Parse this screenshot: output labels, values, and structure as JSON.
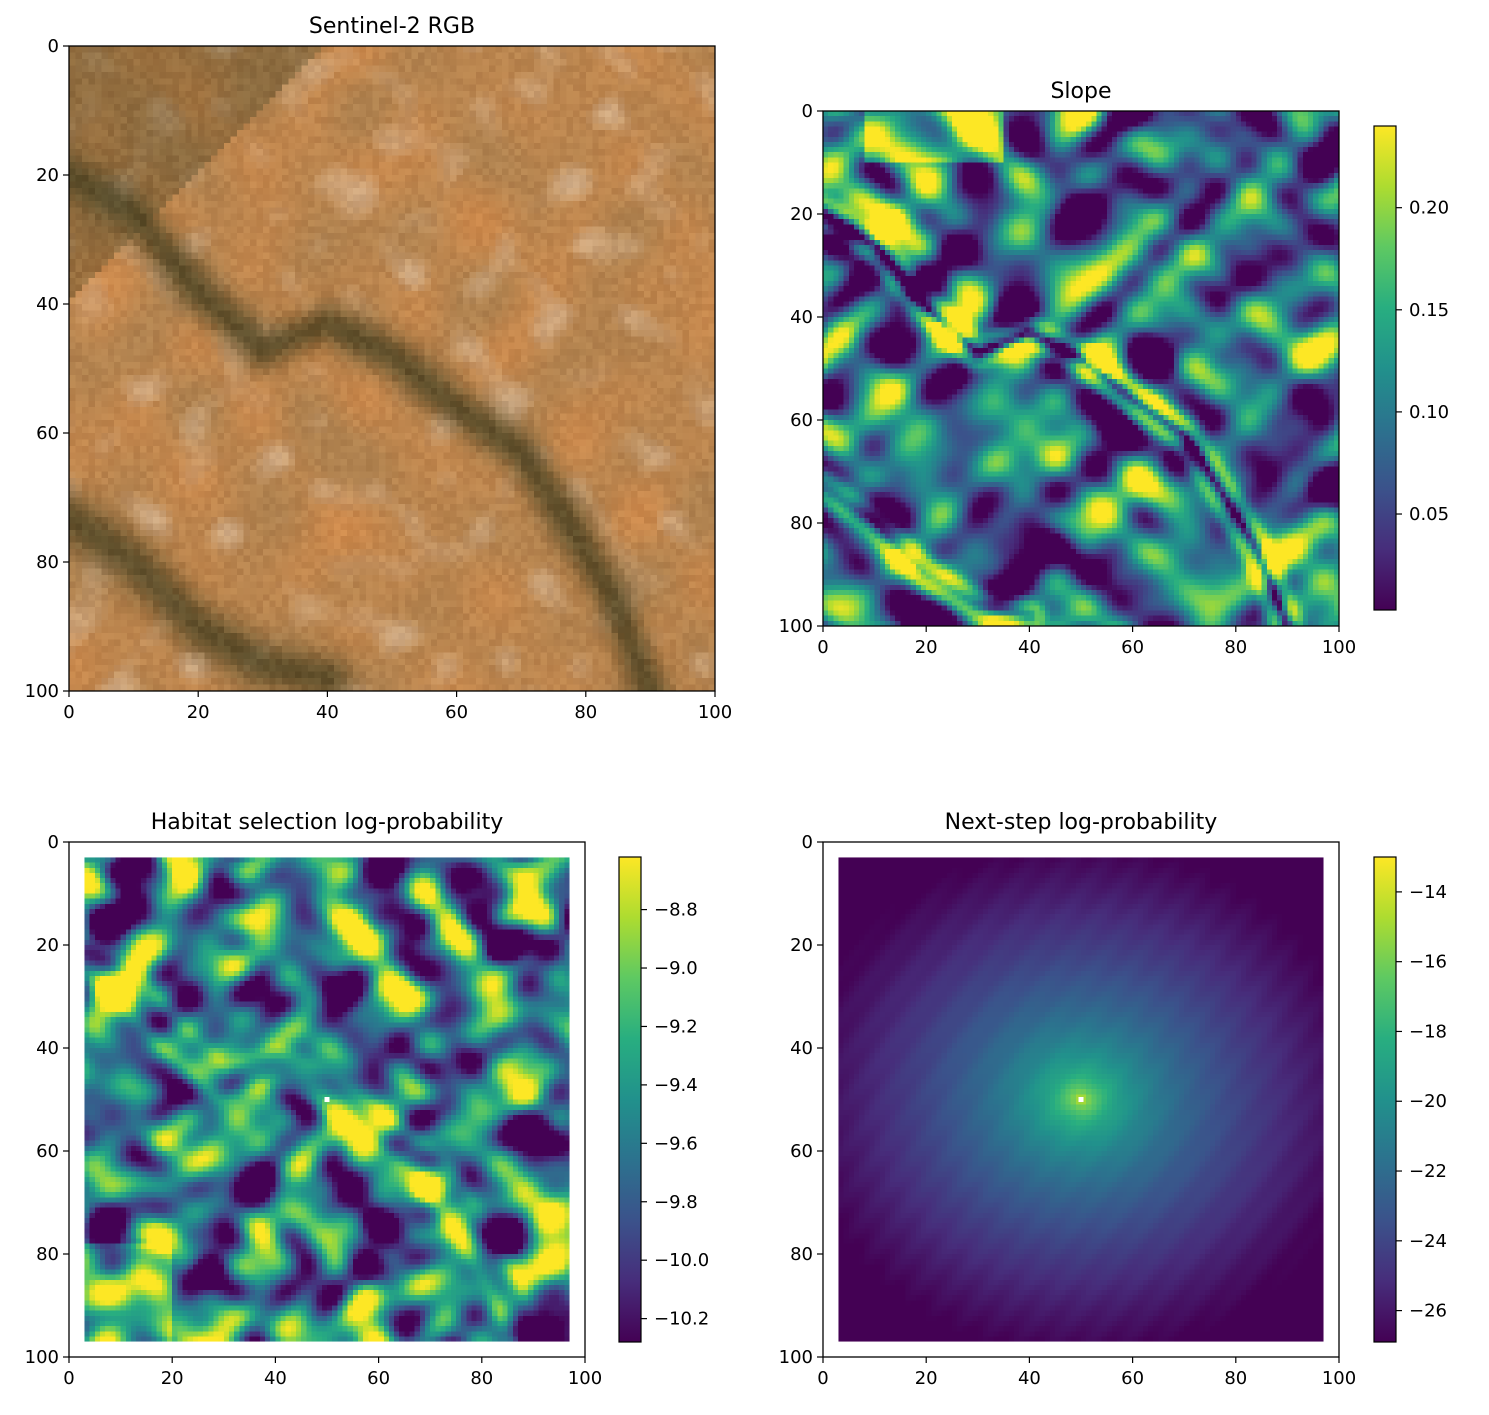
{
  "figure": {
    "panels": [
      {
        "id": "rgb",
        "title": "Sentinel-2 RGB"
      },
      {
        "id": "slope",
        "title": "Slope"
      },
      {
        "id": "habitat",
        "title": "Habitat selection log-probability"
      },
      {
        "id": "nextstep",
        "title": "Next-step log-probability"
      }
    ]
  },
  "chart_data": [
    {
      "type": "heatmap",
      "title": "Sentinel-2 RGB",
      "xlabel": "",
      "ylabel": "",
      "xlim": [
        0,
        100
      ],
      "ylim": [
        100,
        0
      ],
      "x_ticks": [
        0,
        20,
        40,
        60,
        80,
        100
      ],
      "y_ticks": [
        0,
        20,
        40,
        60,
        80,
        100
      ],
      "colormap": "rgb",
      "colors": {
        "base": "#b0824f",
        "dark": "#4a4222",
        "light": "#d8b896",
        "orange": "#cf8a4c"
      },
      "colorbar": null
    },
    {
      "type": "heatmap",
      "title": "Slope",
      "xlabel": "",
      "ylabel": "",
      "xlim": [
        0,
        100
      ],
      "ylim": [
        100,
        0
      ],
      "x_ticks": [
        0,
        20,
        40,
        60,
        80,
        100
      ],
      "y_ticks": [
        0,
        20,
        40,
        60,
        80,
        100
      ],
      "colormap": "viridis",
      "value_range": [
        0.003,
        0.24
      ],
      "colorbar": {
        "ticks": [
          "0.05",
          "0.10",
          "0.15",
          "0.20"
        ],
        "tick_values": [
          0.05,
          0.1,
          0.15,
          0.2
        ]
      }
    },
    {
      "type": "heatmap",
      "title": "Habitat selection log-probability",
      "xlabel": "",
      "ylabel": "",
      "xlim": [
        0,
        100
      ],
      "ylim": [
        100,
        0
      ],
      "x_ticks": [
        0,
        20,
        40,
        60,
        80,
        100
      ],
      "y_ticks": [
        0,
        20,
        40,
        60,
        80,
        100
      ],
      "colormap": "viridis",
      "value_range": [
        -10.28,
        -8.62
      ],
      "data_extent": [
        3,
        97
      ],
      "marker": {
        "x": 50,
        "y": 50,
        "color": "#ffffff"
      },
      "colorbar": {
        "ticks": [
          "−10.2",
          "−10.0",
          "−9.8",
          "−9.6",
          "−9.4",
          "−9.2",
          "−9.0",
          "−8.8"
        ],
        "tick_values": [
          -10.2,
          -10.0,
          -9.8,
          -9.6,
          -9.4,
          -9.2,
          -9.0,
          -8.8
        ]
      }
    },
    {
      "type": "heatmap",
      "title": "Next-step log-probability",
      "xlabel": "",
      "ylabel": "",
      "xlim": [
        0,
        100
      ],
      "ylim": [
        100,
        0
      ],
      "x_ticks": [
        0,
        20,
        40,
        60,
        80,
        100
      ],
      "y_ticks": [
        0,
        20,
        40,
        60,
        80,
        100
      ],
      "colormap": "viridis",
      "value_range": [
        -26.9,
        -13.0
      ],
      "data_extent": [
        3,
        97
      ],
      "center": {
        "x": 50,
        "y": 50
      },
      "marker": {
        "x": 50,
        "y": 50,
        "color": "#ffffff"
      },
      "colorbar": {
        "ticks": [
          "−26",
          "−24",
          "−22",
          "−20",
          "−18",
          "−16",
          "−14"
        ],
        "tick_values": [
          -26,
          -24,
          -22,
          -20,
          -18,
          -16,
          -14
        ]
      }
    }
  ]
}
